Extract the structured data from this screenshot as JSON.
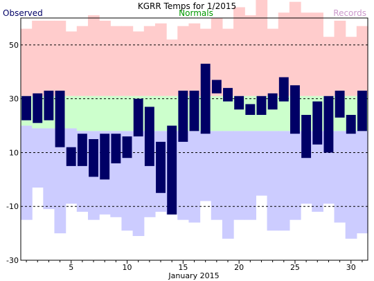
{
  "chart_data": {
    "type": "bar",
    "title": "KGRR Temps for 1/2015",
    "xlabel": "January 2015",
    "ylabel": "",
    "legend": [
      "Observed",
      "Normals",
      "Records"
    ],
    "colors": {
      "observed": "#000066",
      "normals_text": "#009900",
      "records_text": "#cc99cc",
      "record_high_band": "#ffcccc",
      "normal_band": "#ccffcc",
      "record_low_band": "#ccccff",
      "grid": "#000000"
    },
    "grid": true,
    "ylim": [
      -30,
      60
    ],
    "yticks": [
      -30,
      -10,
      10,
      30,
      50
    ],
    "xticks": [
      5,
      10,
      15,
      20,
      25,
      30
    ],
    "days": [
      1,
      2,
      3,
      4,
      5,
      6,
      7,
      8,
      9,
      10,
      11,
      12,
      13,
      14,
      15,
      16,
      17,
      18,
      19,
      20,
      21,
      22,
      23,
      24,
      25,
      26,
      27,
      28,
      29,
      30,
      31
    ],
    "record_high": [
      56,
      59,
      59,
      59,
      55,
      57,
      61,
      59,
      57,
      57,
      55,
      57,
      58,
      52,
      57,
      58,
      56,
      60,
      56,
      64,
      61,
      68,
      56,
      62,
      66,
      62,
      62,
      53,
      59,
      53,
      57
    ],
    "normal_high": [
      31,
      31,
      31,
      31,
      31,
      31,
      31,
      31,
      31,
      31,
      31,
      31,
      31,
      31,
      31,
      31,
      31,
      31,
      31,
      31,
      31,
      31,
      31,
      31,
      31,
      31,
      31,
      31,
      31,
      31,
      31
    ],
    "normal_low": [
      20,
      19,
      19,
      19,
      19,
      18,
      18,
      18,
      18,
      18,
      18,
      18,
      18,
      18,
      18,
      18,
      18,
      18,
      18,
      18,
      18,
      18,
      18,
      18,
      18,
      18,
      18,
      18,
      18,
      18,
      18
    ],
    "record_low": [
      -15,
      -3,
      -11,
      -20,
      -9,
      -12,
      -15,
      -13,
      -14,
      -19,
      -21,
      -14,
      -12,
      -13,
      -15,
      -16,
      -8,
      -15,
      -22,
      -15,
      -15,
      -6,
      -19,
      -19,
      -15,
      -9,
      -12,
      -9,
      -16,
      -22,
      -20
    ],
    "observed_high": [
      31,
      32,
      33,
      33,
      12,
      17,
      15,
      17,
      17,
      16,
      30,
      27,
      14,
      20,
      33,
      33,
      43,
      37,
      34,
      31,
      28,
      31,
      32,
      38,
      35,
      24,
      29,
      31,
      33,
      24,
      33
    ],
    "observed_low": [
      22,
      21,
      22,
      12,
      5,
      5,
      1,
      0,
      6,
      8,
      16,
      5,
      -5,
      -13,
      14,
      18,
      17,
      32,
      29,
      26,
      24,
      24,
      26,
      29,
      17,
      8,
      13,
      10,
      23,
      17,
      18
    ]
  }
}
